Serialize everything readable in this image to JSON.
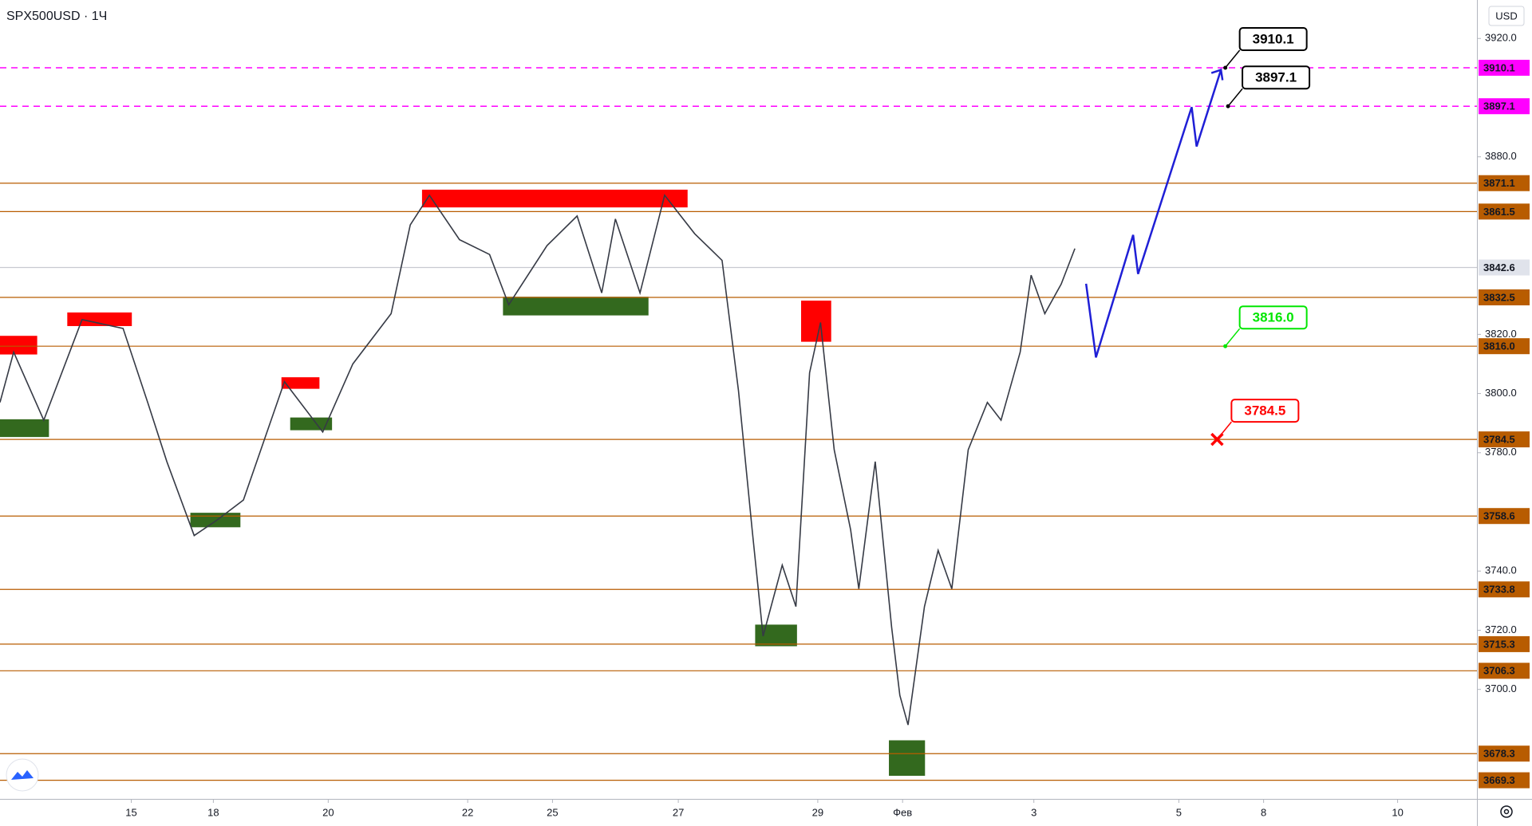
{
  "chart_data": {
    "type": "candlestick",
    "title": "SPX500USD · 1Ч",
    "currency": "USD",
    "ylim": [
      3663,
      3933
    ],
    "xlim": [
      0,
      540
    ],
    "yticks": [
      {
        "value": 3920,
        "label": "3920.0"
      },
      {
        "value": 3880,
        "label": "3880.0"
      },
      {
        "value": 3820,
        "label": "3820.0"
      },
      {
        "value": 3800,
        "label": "3800.0"
      },
      {
        "value": 3780,
        "label": "3780.0"
      },
      {
        "value": 3740,
        "label": "3740.0"
      },
      {
        "value": 3720,
        "label": "3720.0"
      },
      {
        "value": 3700,
        "label": "3700.0"
      }
    ],
    "xticks": [
      {
        "value": 48,
        "label": "15"
      },
      {
        "value": 78,
        "label": "18"
      },
      {
        "value": 120,
        "label": "20"
      },
      {
        "value": 171,
        "label": "22"
      },
      {
        "value": 202,
        "label": "25"
      },
      {
        "value": 248,
        "label": "27"
      },
      {
        "value": 299,
        "label": "29"
      },
      {
        "value": 330,
        "label": "Фев"
      },
      {
        "value": 378,
        "label": "3"
      },
      {
        "value": 431,
        "label": "5"
      },
      {
        "value": 462,
        "label": "8"
      },
      {
        "value": 511,
        "label": "10"
      }
    ],
    "series": [
      {
        "color": "#363a45",
        "x": [
          0,
          5,
          16,
          30,
          45,
          54,
          61,
          71,
          79,
          89,
          104,
          118,
          129,
          143,
          150,
          157,
          168,
          179,
          186,
          200,
          211,
          220,
          225,
          234,
          243,
          254,
          264,
          270,
          275,
          279,
          286,
          291,
          296,
          300,
          305,
          311,
          314,
          320,
          326,
          329,
          332,
          338,
          343,
          348,
          354,
          361,
          366,
          373,
          377,
          382,
          388,
          393
        ],
        "values": [
          3797,
          3814,
          3791,
          3825,
          3822,
          3797,
          3777,
          3752,
          3757,
          3764,
          3804,
          3787,
          3810,
          3827,
          3857,
          3867,
          3852,
          3847,
          3830,
          3850,
          3860,
          3834,
          3859,
          3834,
          3867,
          3854,
          3845,
          3801,
          3754,
          3718,
          3742,
          3728,
          3807,
          3824,
          3781,
          3754,
          3734,
          3777,
          3721,
          3698,
          3688,
          3728,
          3747,
          3734,
          3781,
          3797,
          3791,
          3814,
          3840,
          3827,
          3837,
          3849
        ]
      },
      {
        "color": "#1f1fd6",
        "x": [
          397.1,
          400.7,
          414.3,
          416.1,
          435.7,
          437.5,
          446.4
        ],
        "values": [
          3837.1,
          3812.2,
          3853.6,
          3840.4,
          3896.8,
          3883.5,
          3909.4
        ]
      }
    ],
    "zones": [
      {
        "x": [
          0,
          13.6
        ],
        "y": [
          3813.2,
          3819.5
        ],
        "color": "#ff0000"
      },
      {
        "x": [
          24.6,
          48.2
        ],
        "y": [
          3822.8,
          3827.4
        ],
        "color": "#ff0000"
      },
      {
        "x": [
          102.9,
          116.8
        ],
        "y": [
          3801.6,
          3805.5
        ],
        "color": "#ff0000"
      },
      {
        "x": [
          154.3,
          251.4
        ],
        "y": [
          3862.9,
          3868.9
        ],
        "color": "#ff0000"
      },
      {
        "x": [
          292.9,
          303.9
        ],
        "y": [
          3817.5,
          3831.4
        ],
        "color": "#ff0000"
      },
      {
        "x": [
          0,
          17.9
        ],
        "y": [
          3785.3,
          3791.3
        ],
        "color": "#33691e"
      },
      {
        "x": [
          106.1,
          121.4
        ],
        "y": [
          3787.6,
          3791.9
        ],
        "color": "#33691e"
      },
      {
        "x": [
          69.6,
          87.9
        ],
        "y": [
          3754.8,
          3759.7
        ],
        "color": "#33691e"
      },
      {
        "x": [
          183.9,
          237.1
        ],
        "y": [
          3826.4,
          3832.7
        ],
        "color": "#33691e"
      },
      {
        "x": [
          276.1,
          291.4
        ],
        "y": [
          3714.6,
          3721.9
        ],
        "color": "#33691e"
      },
      {
        "x": [
          325,
          338.2
        ],
        "y": [
          3670.8,
          3682.8
        ],
        "color": "#33691e"
      }
    ],
    "levels": [
      {
        "value": 3910.1,
        "color": "#ff00ff",
        "dashed": true
      },
      {
        "value": 3897.1,
        "color": "#ff00ff",
        "dashed": true
      },
      {
        "value": 3871.1,
        "color": "#b85c00",
        "dashed": false
      },
      {
        "value": 3861.5,
        "color": "#b85c00",
        "dashed": false
      },
      {
        "value": 3842.6,
        "color": "#c8cad0",
        "dashed": false
      },
      {
        "value": 3832.5,
        "color": "#b85c00",
        "dashed": false
      },
      {
        "value": {
          "value": 3816,
          "label": "3816.0"
        },
        "color": "#b85c00",
        "dashed": false
      },
      {
        "value": 3784.5,
        "color": "#b85c00",
        "dashed": false
      },
      {
        "value": 3758.6,
        "color": "#b85c00",
        "dashed": false
      },
      {
        "value": 3733.8,
        "color": "#b85c00",
        "dashed": false
      },
      {
        "value": 3715.3,
        "color": "#b85c00",
        "dashed": false
      },
      {
        "value": 3706.3,
        "color": "#b85c00",
        "dashed": false
      },
      {
        "value": 3678.3,
        "color": "#b85c00",
        "dashed": false
      },
      {
        "value": 3669.3,
        "color": "#b85c00",
        "dashed": false
      }
    ],
    "callouts": [
      {
        "x": 448,
        "value": 3910.1,
        "color": "#000000"
      },
      {
        "x": 449,
        "value": 3897.1,
        "color": "#000000"
      },
      {
        "x": 448,
        "value": {
          "value": 3816,
          "label": "3816.0"
        },
        "color": "#00e600"
      },
      {
        "x": 445,
        "value": 3784.5,
        "color": "#ff0000",
        "cross": true
      }
    ]
  }
}
